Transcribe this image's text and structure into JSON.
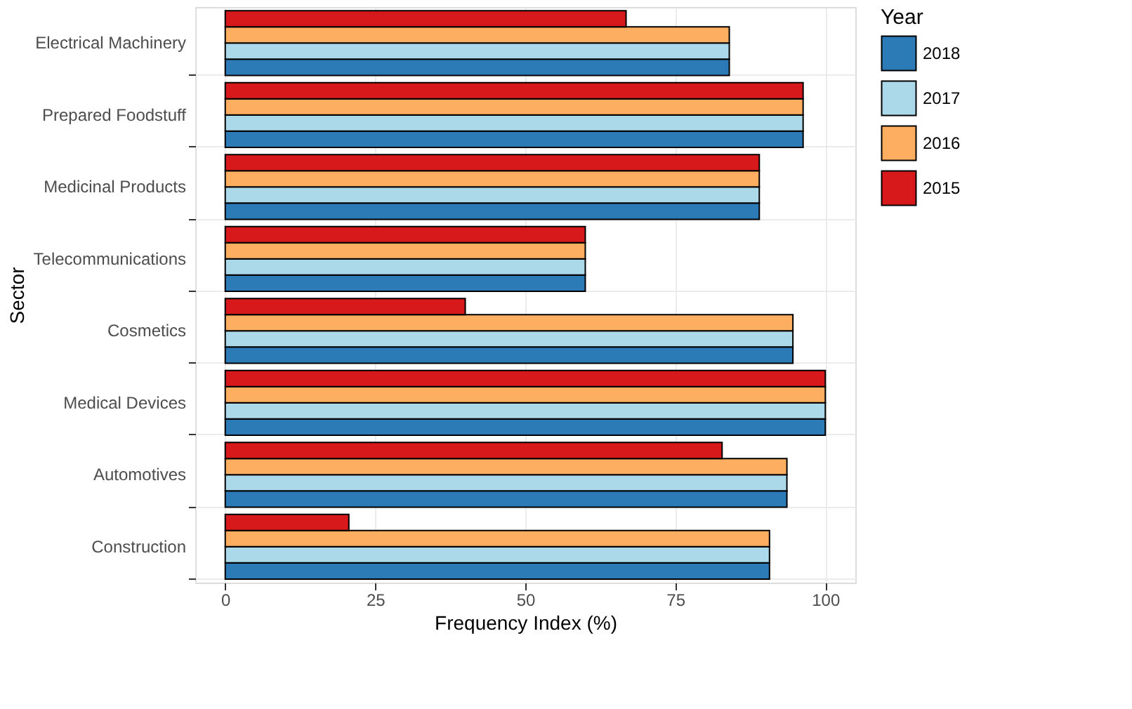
{
  "chart_data": {
    "type": "bar",
    "orientation": "horizontal",
    "xlabel": "Frequency Index (%)",
    "ylabel": "Sector",
    "legend_title": "Year",
    "legend": "right",
    "grid": true,
    "categories": [
      "Electrical Machinery",
      "Prepared Foodstuff",
      "Medicinal Products",
      "Telecommunications",
      "Cosmetics",
      "Medical Devices",
      "Automotives",
      "Construction"
    ],
    "xlim": [
      -5,
      105
    ],
    "xticks": [
      0,
      25,
      50,
      75,
      100
    ],
    "series": [
      {
        "name": "2018",
        "color": "#2c7bb6",
        "values": [
          84,
          96.3,
          89,
          60,
          94.6,
          100,
          93.6,
          90.7
        ]
      },
      {
        "name": "2017",
        "color": "#abd9e9",
        "values": [
          84,
          96.3,
          89,
          60,
          94.6,
          100,
          93.6,
          90.7
        ]
      },
      {
        "name": "2016",
        "color": "#fdae61",
        "values": [
          84,
          96.3,
          89,
          60,
          94.6,
          100,
          93.6,
          90.7
        ]
      },
      {
        "name": "2015",
        "color": "#d7191c",
        "values": [
          66.8,
          96.3,
          89,
          60,
          40,
          100,
          82.8,
          20.6
        ]
      }
    ]
  }
}
